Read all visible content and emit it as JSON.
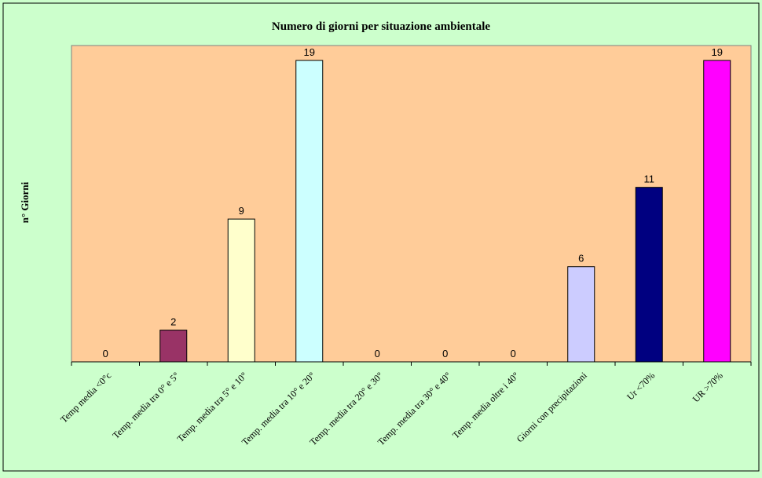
{
  "chart_data": {
    "type": "bar",
    "title": "Numero di giorni per situazione ambientale",
    "xlabel": "",
    "ylabel": "n° Giorni",
    "categories": [
      "Temp media <0°c",
      "Temp. media tra 0° e 5°",
      "Temp. media tra 5° e 10°",
      "Temp. media tra 10° e 20°",
      "Temp. media tra 20° e 30°",
      "Temp. media tra 30° e 40°",
      "Temp. media oltre i 40°",
      "Giorni con precipitazioni",
      "Ur <70%",
      "UR >70%"
    ],
    "values": [
      0,
      2,
      9,
      19,
      0,
      0,
      0,
      6,
      11,
      19
    ],
    "colors": [
      "#c0c0c0",
      "#993366",
      "#ffffcc",
      "#ccffff",
      "#c0c0c0",
      "#c0c0c0",
      "#c0c0c0",
      "#ccccff",
      "#000080",
      "#ff00ff"
    ],
    "ylim": [
      0,
      19
    ],
    "grid": false,
    "legend": "none",
    "plot_background": "#ffcc99",
    "chart_background": "#ccffcc"
  }
}
